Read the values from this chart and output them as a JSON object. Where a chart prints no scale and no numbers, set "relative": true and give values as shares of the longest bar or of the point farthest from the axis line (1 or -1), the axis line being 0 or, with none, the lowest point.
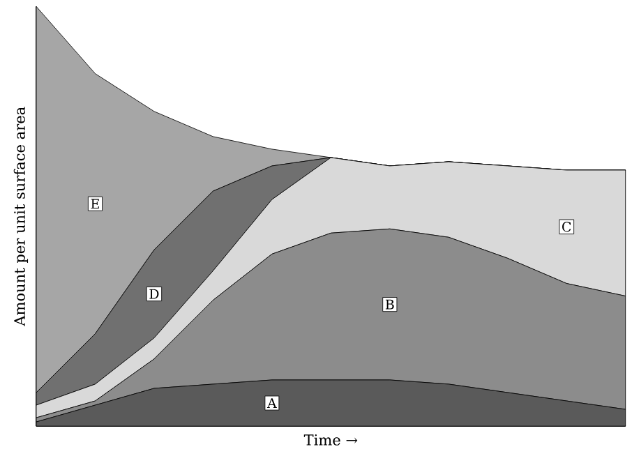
{
  "chart_data": {
    "type": "area",
    "stacked": true,
    "relative": true,
    "xlabel": "Time →",
    "ylabel": "Amount per unit surface area",
    "categories": [
      null,
      null,
      null,
      null,
      null,
      null,
      null,
      null,
      null,
      null,
      null
    ],
    "series": [
      {
        "name": "A",
        "color": "#5a5a5a",
        "values": [
          0.01,
          0.05,
          0.09,
          0.1,
          0.11,
          0.11,
          0.11,
          0.1,
          0.08,
          0.06,
          0.04
        ]
      },
      {
        "name": "B",
        "color": "#8c8c8c",
        "values": [
          0.01,
          0.01,
          0.07,
          0.2,
          0.3,
          0.35,
          0.36,
          0.35,
          0.32,
          0.28,
          0.27
        ]
      },
      {
        "name": "C",
        "color": "#d9d9d9",
        "values": [
          0.03,
          0.04,
          0.05,
          0.07,
          0.13,
          0.18,
          0.15,
          0.18,
          0.22,
          0.27,
          0.3
        ]
      },
      {
        "name": "D",
        "color": "#707070",
        "values": [
          0.03,
          0.12,
          0.21,
          0.19,
          0.08,
          0,
          0,
          0,
          0,
          0,
          0
        ]
      },
      {
        "name": "E",
        "color": "#a6a6a6",
        "values": [
          0.92,
          0.62,
          0.33,
          0.13,
          0.04,
          0,
          0,
          0,
          0,
          0,
          0
        ]
      }
    ]
  }
}
